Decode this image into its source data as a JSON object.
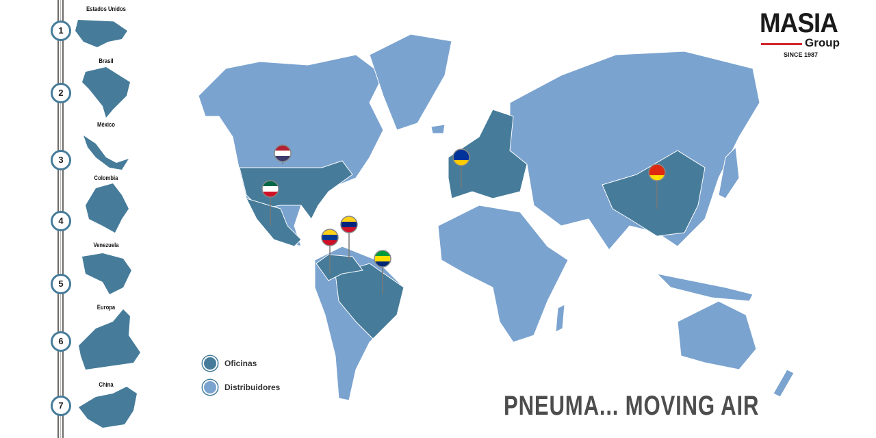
{
  "brand": {
    "name": "MASIA",
    "sub": "Group",
    "since": "SINCE 1987",
    "accent": "#d2232a"
  },
  "countries": [
    {
      "num": "1",
      "name": "Estados Unidos"
    },
    {
      "num": "2",
      "name": "Brasil"
    },
    {
      "num": "3",
      "name": "México"
    },
    {
      "num": "4",
      "name": "Colombia"
    },
    {
      "num": "5",
      "name": "Venezuela"
    },
    {
      "num": "6",
      "name": "Europa"
    },
    {
      "num": "7",
      "name": "China"
    }
  ],
  "legend": {
    "offices": "Oficinas",
    "distributors": "Distribuidores",
    "offices_color": "#467c9a",
    "distributors_color": "#7ba3cf"
  },
  "pins": [
    "usa-flag",
    "mexico-flag",
    "colombia-flag",
    "venezuela-flag",
    "brazil-flag",
    "eu-flag",
    "china-flag"
  ],
  "tagline": "PNEUMA... MOVING AIR"
}
